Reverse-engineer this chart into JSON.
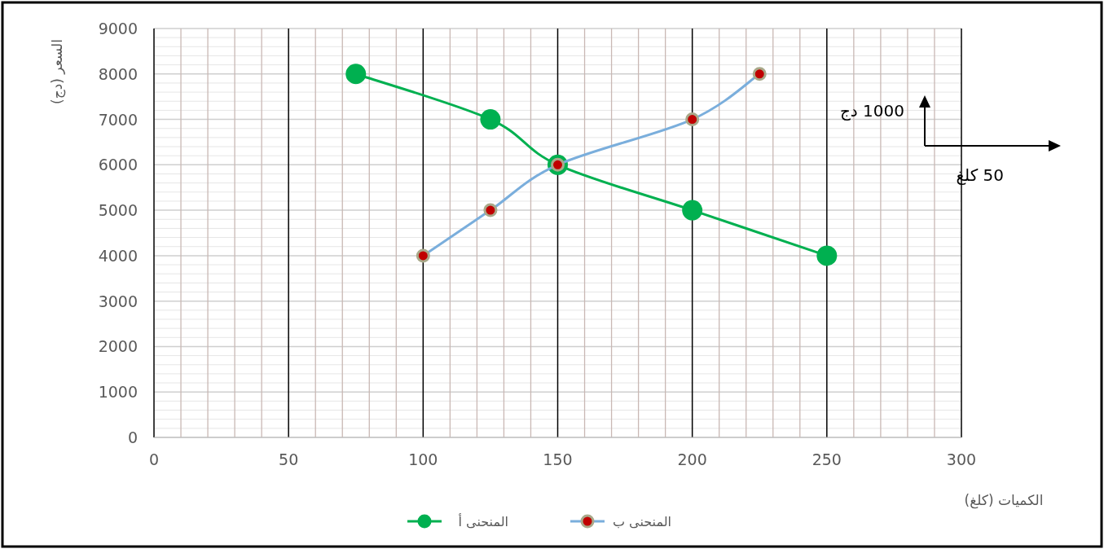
{
  "chart_data": {
    "type": "line",
    "xlabel": "الكميات (كلغ)",
    "ylabel": "السعر (دج)",
    "xlim": [
      0,
      300
    ],
    "xticks": [
      0,
      50,
      100,
      150,
      200,
      250,
      300
    ],
    "ylim": [
      0,
      9000
    ],
    "yticks": [
      0,
      1000,
      2000,
      3000,
      4000,
      5000,
      6000,
      7000,
      8000,
      9000
    ],
    "grid": true,
    "legend": "bottom",
    "marker": "circle",
    "line_style": "solid",
    "annotations": [
      "1000 دج",
      "50 كلغ"
    ],
    "series": [
      {
        "name": "المنحنى أ",
        "color": "#00b050",
        "x": [
          75,
          125,
          150,
          200,
          250
        ],
        "values": [
          8000,
          7000,
          6000,
          5000,
          4000
        ]
      },
      {
        "name": "المنحنى ب",
        "color": "#7aaedc",
        "colors": [
          "#c00000",
          "#c00000",
          "#c00000",
          "#c00000",
          "#c00000"
        ],
        "x": [
          100,
          125,
          150,
          200,
          225
        ],
        "values": [
          4000,
          5000,
          6000,
          7000,
          8000
        ]
      }
    ]
  }
}
